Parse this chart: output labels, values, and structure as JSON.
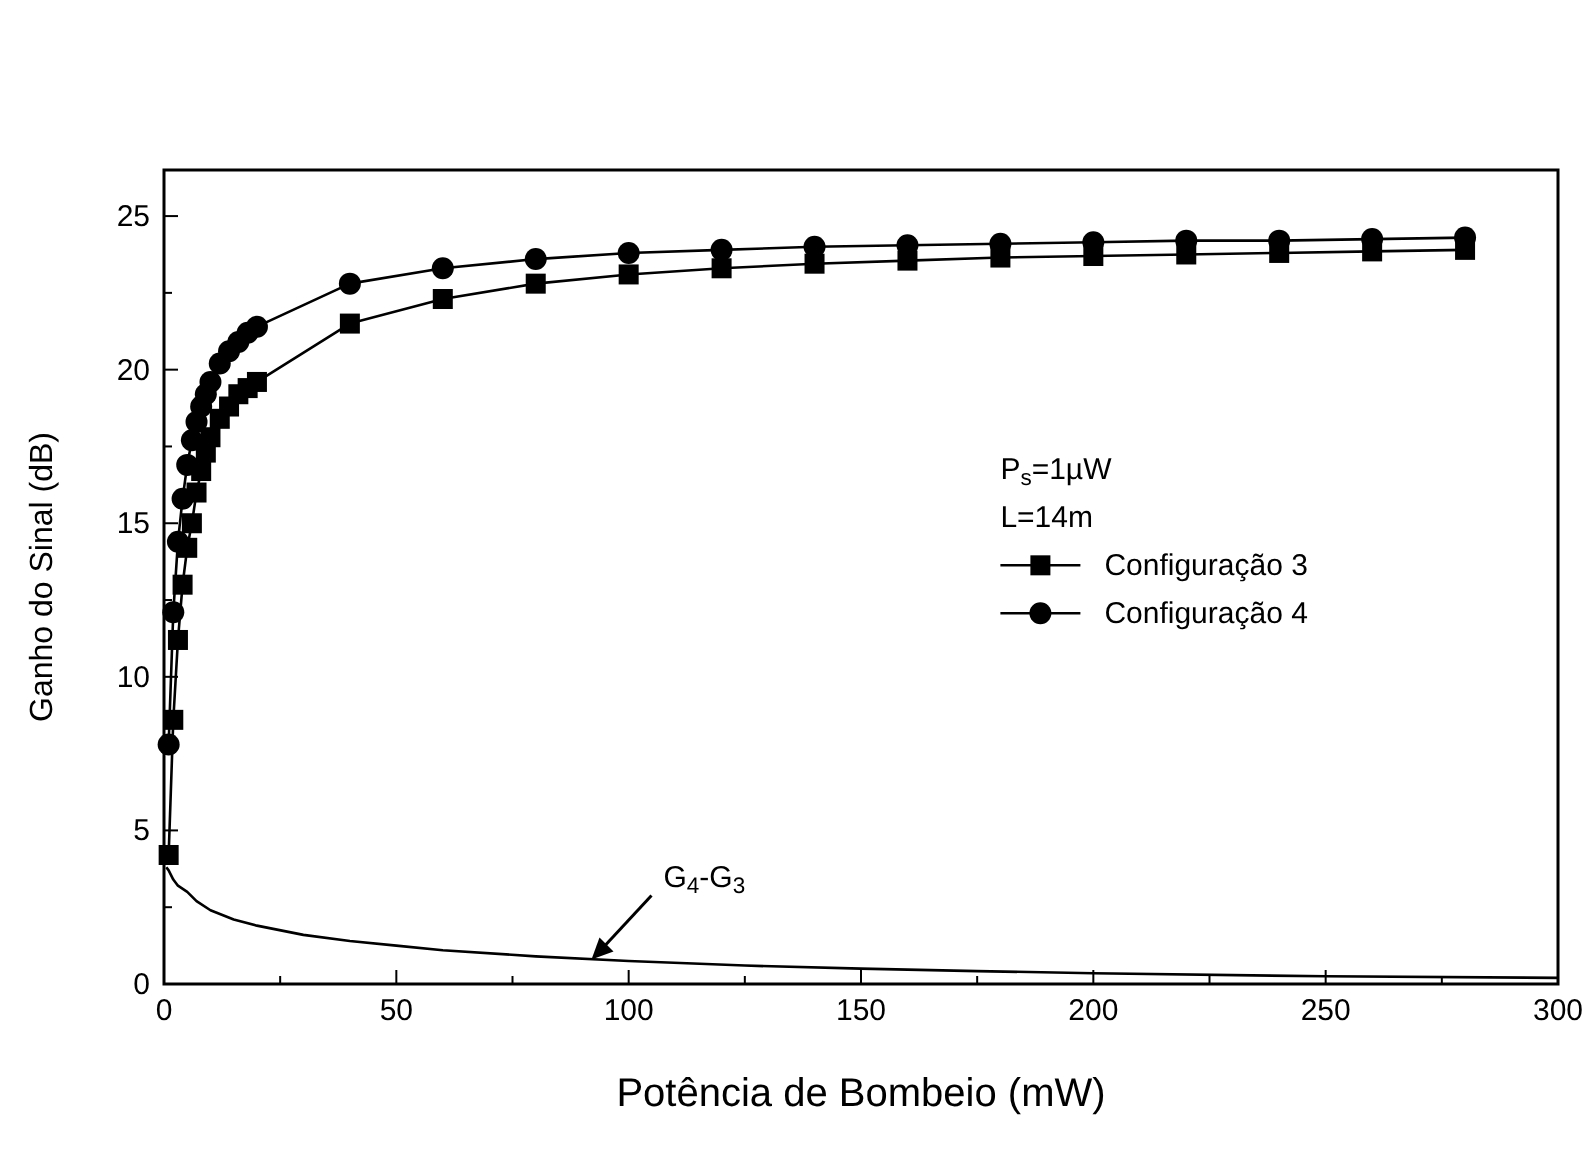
{
  "chart_data": {
    "type": "line",
    "xlabel": "Potência de Bombeio (mW)",
    "ylabel": "Ganho do Sinal (dB)",
    "xlim": [
      0,
      300
    ],
    "ylim": [
      0,
      26.5
    ],
    "xticks": [
      0,
      {
        "value": 25,
        "label": null
      },
      50,
      {
        "value": 75,
        "label": null
      },
      100,
      {
        "value": 125,
        "label": null
      },
      150,
      {
        "value": 175,
        "label": null
      },
      200,
      {
        "value": 225,
        "label": null
      },
      250,
      {
        "value": 275,
        "label": null
      },
      300
    ],
    "yticks": [
      0,
      {
        "value": 2.5,
        "label": null
      },
      5,
      {
        "value": 7.5,
        "label": null
      },
      10,
      {
        "value": 12.5,
        "label": null
      },
      15,
      {
        "value": 17.5,
        "label": null
      },
      20,
      {
        "value": 22.5,
        "label": null
      },
      25
    ],
    "grid": false,
    "legend": "right",
    "annotations": [
      "P$_{s}$=1µW",
      "L=14m",
      {
        "text": "G$_{4}$-G$_{3}$",
        "x": 92,
        "y": 0.8
      }
    ],
    "series": [
      {
        "name": "Configuração 3",
        "color": "#000000",
        "marker": "square",
        "x": [
          1,
          2,
          3,
          4,
          5,
          6,
          7,
          8,
          9,
          10,
          12,
          14,
          16,
          18,
          20,
          40,
          60,
          80,
          100,
          120,
          140,
          160,
          180,
          200,
          220,
          240,
          260,
          280
        ],
        "values": [
          4.2,
          8.6,
          11.2,
          13,
          14.2,
          15,
          16,
          16.7,
          17.3,
          17.8,
          18.4,
          18.8,
          19.2,
          19.4,
          19.6,
          21.5,
          22.3,
          22.8,
          23.1,
          23.3,
          23.45,
          23.55,
          23.65,
          23.7,
          23.75,
          23.8,
          23.85,
          23.9
        ]
      },
      {
        "name": "Configuração 4",
        "color": "#000000",
        "marker": "circle",
        "x": [
          1,
          2,
          3,
          4,
          5,
          6,
          7,
          8,
          9,
          10,
          12,
          14,
          16,
          18,
          20,
          40,
          60,
          80,
          100,
          120,
          140,
          160,
          180,
          200,
          220,
          240,
          260,
          280
        ],
        "values": [
          7.8,
          12.1,
          14.4,
          15.8,
          16.9,
          17.7,
          18.3,
          18.8,
          19.2,
          19.6,
          20.2,
          20.6,
          20.9,
          21.2,
          21.4,
          22.8,
          23.3,
          23.6,
          23.8,
          23.9,
          24,
          24.05,
          24.1,
          24.15,
          24.2,
          24.2,
          24.25,
          24.3
        ]
      },
      {
        "color": "#000000",
        "marker": "none",
        "x": [
          0.5,
          1,
          2,
          3,
          5,
          7,
          10,
          15,
          20,
          30,
          40,
          50,
          60,
          80,
          100,
          125,
          150,
          175,
          200,
          250,
          300
        ],
        "values": [
          3.8,
          3.7,
          3.4,
          3.2,
          3,
          2.7,
          2.4,
          2.1,
          1.9,
          1.6,
          1.4,
          1.25,
          1.1,
          0.9,
          0.75,
          0.6,
          0.5,
          0.42,
          0.35,
          0.25,
          0.2
        ]
      }
    ]
  }
}
